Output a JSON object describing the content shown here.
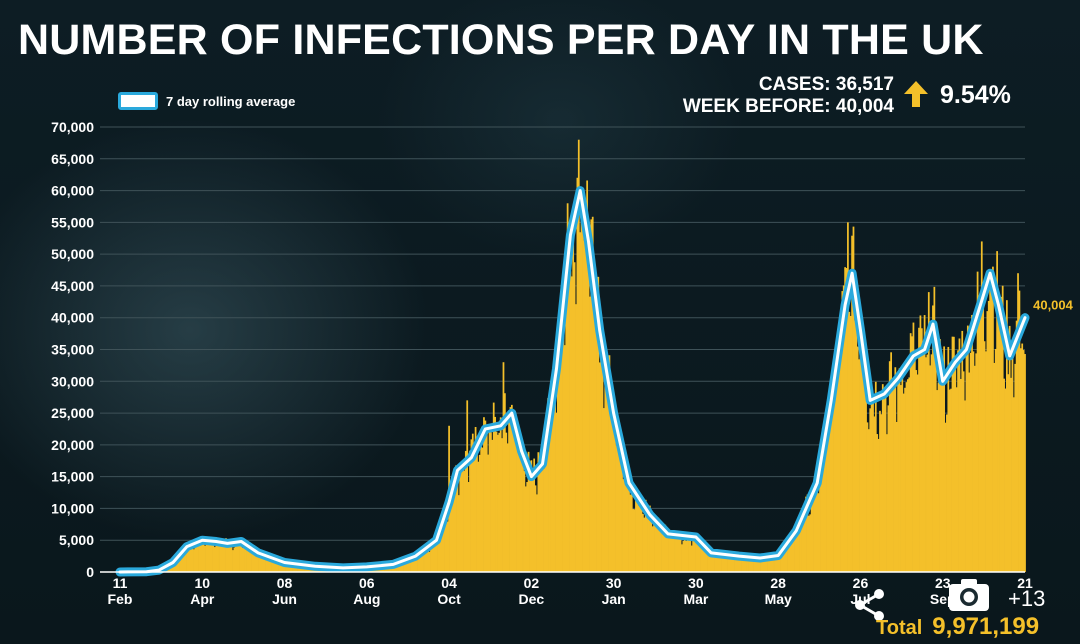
{
  "title": "NUMBER OF INFECTIONS PER DAY IN THE UK",
  "stats": {
    "cases_label": "CASES: 36,517",
    "week_before_label": "WEEK BEFORE: 40,004",
    "change": "9.54%"
  },
  "legend_label": "7 day rolling average",
  "end_label": "40,004",
  "total": {
    "label": "Total",
    "value": "9,971,199"
  },
  "overlay": {
    "more_count": "+13"
  },
  "colors": {
    "bars": "#f4c02a",
    "line": "#2aa9dc",
    "line_core": "#ffffff",
    "background": "#0b1a20"
  },
  "icons": [
    "arrow-up-icon",
    "camera-icon",
    "share-icon"
  ],
  "chart_data": {
    "type": "bar",
    "title": "NUMBER OF INFECTIONS PER DAY IN THE UK",
    "xlabel": "",
    "ylabel": "",
    "ylim": [
      0,
      70000
    ],
    "yticks": [
      "0",
      "5,000",
      "10,000",
      "15,000",
      "20,000",
      "25,000",
      "30,000",
      "35,000",
      "40,000",
      "45,000",
      "50,000",
      "55,000",
      "60,000",
      "65,000",
      "70,000"
    ],
    "x_tick_labels": [
      {
        "day": "11",
        "month": "Feb",
        "date": "2020-02-11"
      },
      {
        "day": "10",
        "month": "Apr",
        "date": "2020-04-10"
      },
      {
        "day": "08",
        "month": "Jun",
        "date": "2020-06-08"
      },
      {
        "day": "06",
        "month": "Aug",
        "date": "2020-08-06"
      },
      {
        "day": "04",
        "month": "Oct",
        "date": "2020-10-04"
      },
      {
        "day": "02",
        "month": "Dec",
        "date": "2020-12-02"
      },
      {
        "day": "30",
        "month": "Jan",
        "date": "2021-01-30"
      },
      {
        "day": "30",
        "month": "Mar",
        "date": "2021-03-30"
      },
      {
        "day": "28",
        "month": "May",
        "date": "2021-05-28"
      },
      {
        "day": "26",
        "month": "Jul",
        "date": "2021-07-26"
      },
      {
        "day": "23",
        "month": "Sep",
        "date": "2021-09-23"
      },
      {
        "day": "21",
        "month": "",
        "date": "2021-11-21"
      }
    ],
    "grid": true,
    "legend_position": "top-left",
    "series": [
      {
        "name": "7 day rolling average",
        "kind": "line",
        "points": [
          {
            "x": "2020-02-11",
            "y": 0
          },
          {
            "x": "2020-03-01",
            "y": 50
          },
          {
            "x": "2020-03-10",
            "y": 300
          },
          {
            "x": "2020-03-20",
            "y": 1500
          },
          {
            "x": "2020-03-30",
            "y": 4000
          },
          {
            "x": "2020-04-10",
            "y": 5000
          },
          {
            "x": "2020-04-20",
            "y": 4800
          },
          {
            "x": "2020-04-28",
            "y": 4500
          },
          {
            "x": "2020-05-08",
            "y": 4800
          },
          {
            "x": "2020-05-20",
            "y": 3000
          },
          {
            "x": "2020-06-08",
            "y": 1500
          },
          {
            "x": "2020-06-30",
            "y": 900
          },
          {
            "x": "2020-07-20",
            "y": 650
          },
          {
            "x": "2020-08-06",
            "y": 800
          },
          {
            "x": "2020-08-25",
            "y": 1200
          },
          {
            "x": "2020-09-10",
            "y": 2500
          },
          {
            "x": "2020-09-25",
            "y": 5000
          },
          {
            "x": "2020-10-04",
            "y": 11000
          },
          {
            "x": "2020-10-10",
            "y": 16000
          },
          {
            "x": "2020-10-20",
            "y": 18000
          },
          {
            "x": "2020-10-30",
            "y": 22500
          },
          {
            "x": "2020-11-10",
            "y": 23000
          },
          {
            "x": "2020-11-18",
            "y": 25000
          },
          {
            "x": "2020-11-25",
            "y": 19000
          },
          {
            "x": "2020-12-02",
            "y": 15000
          },
          {
            "x": "2020-12-10",
            "y": 17000
          },
          {
            "x": "2020-12-20",
            "y": 32000
          },
          {
            "x": "2020-12-30",
            "y": 53000
          },
          {
            "x": "2021-01-06",
            "y": 60000
          },
          {
            "x": "2021-01-12",
            "y": 52000
          },
          {
            "x": "2021-01-20",
            "y": 38000
          },
          {
            "x": "2021-01-30",
            "y": 25000
          },
          {
            "x": "2021-02-10",
            "y": 14000
          },
          {
            "x": "2021-02-25",
            "y": 9000
          },
          {
            "x": "2021-03-10",
            "y": 6000
          },
          {
            "x": "2021-03-30",
            "y": 5500
          },
          {
            "x": "2021-04-10",
            "y": 3000
          },
          {
            "x": "2021-04-30",
            "y": 2500
          },
          {
            "x": "2021-05-15",
            "y": 2200
          },
          {
            "x": "2021-05-28",
            "y": 2600
          },
          {
            "x": "2021-06-10",
            "y": 6500
          },
          {
            "x": "2021-06-25",
            "y": 14000
          },
          {
            "x": "2021-07-05",
            "y": 27000
          },
          {
            "x": "2021-07-15",
            "y": 42000
          },
          {
            "x": "2021-07-20",
            "y": 47000
          },
          {
            "x": "2021-07-26",
            "y": 38000
          },
          {
            "x": "2021-08-02",
            "y": 27000
          },
          {
            "x": "2021-08-12",
            "y": 28000
          },
          {
            "x": "2021-08-22",
            "y": 30500
          },
          {
            "x": "2021-09-02",
            "y": 34000
          },
          {
            "x": "2021-09-10",
            "y": 35000
          },
          {
            "x": "2021-09-16",
            "y": 39000
          },
          {
            "x": "2021-09-23",
            "y": 30000
          },
          {
            "x": "2021-10-02",
            "y": 33000
          },
          {
            "x": "2021-10-10",
            "y": 35000
          },
          {
            "x": "2021-10-20",
            "y": 42000
          },
          {
            "x": "2021-10-27",
            "y": 47000
          },
          {
            "x": "2021-11-02",
            "y": 42000
          },
          {
            "x": "2021-11-10",
            "y": 34000
          },
          {
            "x": "2021-11-21",
            "y": 40004
          }
        ]
      },
      {
        "name": "Daily cases",
        "kind": "bars",
        "spikes": [
          {
            "x": "2020-10-04",
            "y": 23000
          },
          {
            "x": "2020-10-17",
            "y": 27000
          },
          {
            "x": "2020-11-12",
            "y": 33000
          },
          {
            "x": "2020-12-28",
            "y": 58000
          },
          {
            "x": "2021-01-05",
            "y": 68000
          },
          {
            "x": "2021-07-17",
            "y": 55000
          },
          {
            "x": "2021-10-21",
            "y": 52000
          },
          {
            "x": "2021-11-16",
            "y": 47000
          }
        ]
      }
    ]
  }
}
